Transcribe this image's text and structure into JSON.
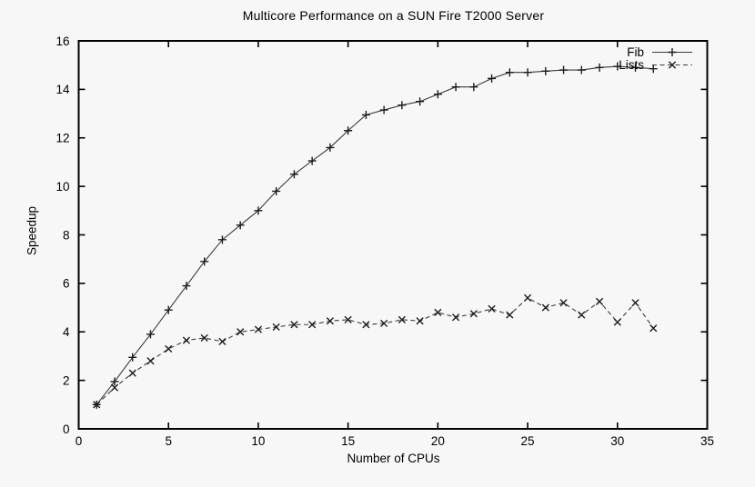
{
  "page": {
    "background": "#f7f7f7",
    "foreground": "#000000"
  },
  "chart_data": {
    "type": "line",
    "title": "Multicore Performance on a SUN Fire T2000 Server",
    "xlabel": "Number of CPUs",
    "ylabel": "Speedup",
    "xlim": [
      0,
      35
    ],
    "ylim": [
      0,
      16
    ],
    "xticks": [
      0,
      5,
      10,
      15,
      20,
      25,
      30,
      35
    ],
    "yticks": [
      0,
      2,
      4,
      6,
      8,
      10,
      12,
      14,
      16
    ],
    "grid": false,
    "legend_position": "top-right-inside",
    "x": [
      1,
      2,
      3,
      4,
      5,
      6,
      7,
      8,
      9,
      10,
      11,
      12,
      13,
      14,
      15,
      16,
      17,
      18,
      19,
      20,
      21,
      22,
      23,
      24,
      25,
      26,
      27,
      28,
      29,
      30,
      31,
      32
    ],
    "series": [
      {
        "name": "Fib",
        "marker": "plus",
        "linestyle": "solid",
        "color": "#3c3c3c",
        "values": [
          1.0,
          1.95,
          2.95,
          3.9,
          4.9,
          5.9,
          6.9,
          7.8,
          8.4,
          9.0,
          9.8,
          10.5,
          11.05,
          11.6,
          12.3,
          12.95,
          13.15,
          13.35,
          13.5,
          13.8,
          14.1,
          14.1,
          14.45,
          14.7,
          14.7,
          14.75,
          14.8,
          14.8,
          14.9,
          14.95,
          14.9,
          14.85
        ]
      },
      {
        "name": "Lists",
        "marker": "cross",
        "linestyle": "dashed",
        "color": "#3c3c3c",
        "values": [
          1.0,
          1.7,
          2.3,
          2.8,
          3.3,
          3.65,
          3.75,
          3.6,
          4.0,
          4.1,
          4.2,
          4.3,
          4.3,
          4.45,
          4.5,
          4.3,
          4.35,
          4.5,
          4.45,
          4.8,
          4.6,
          4.75,
          4.95,
          4.7,
          5.4,
          5.0,
          5.2,
          4.7,
          5.25,
          4.4,
          5.2,
          4.15
        ]
      }
    ]
  }
}
